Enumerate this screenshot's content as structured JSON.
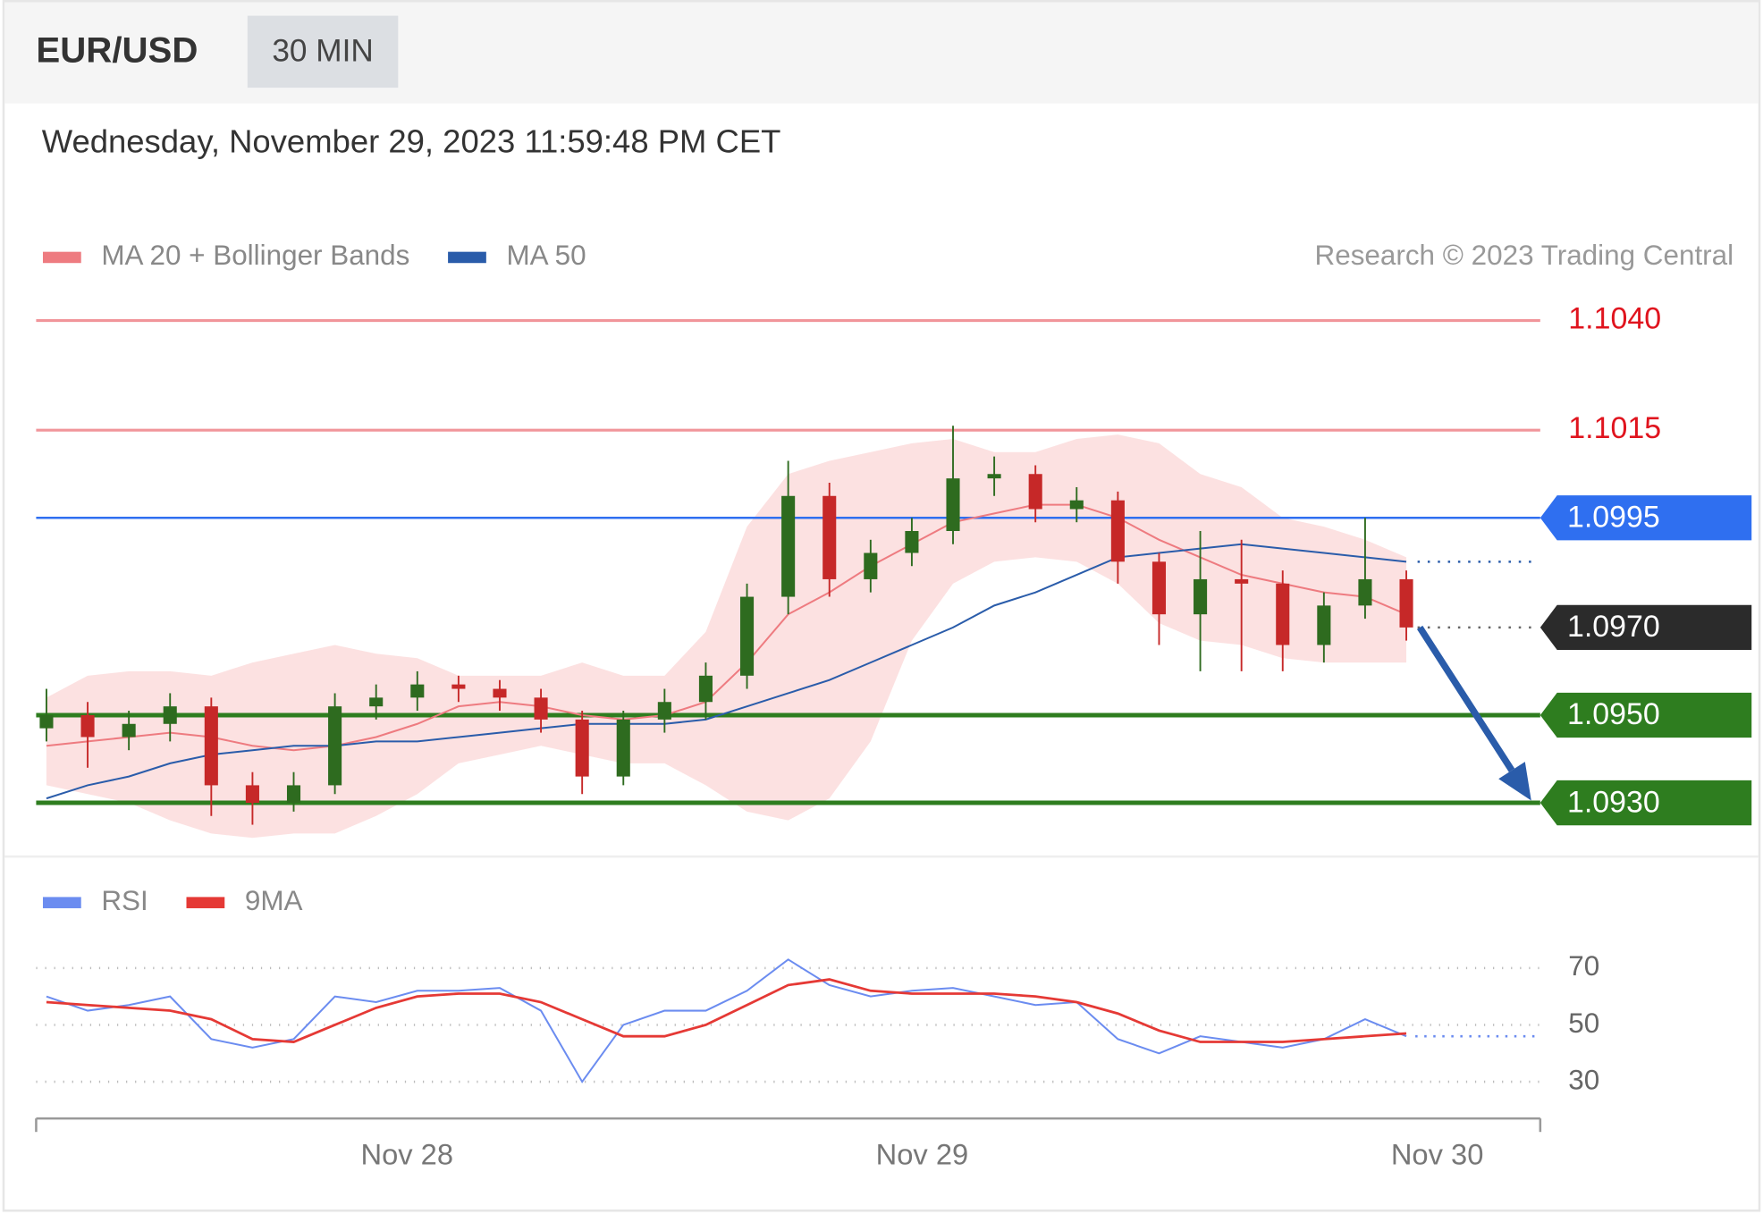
{
  "header": {
    "symbol": "EUR/USD",
    "interval": "30 MIN",
    "timestamp": "Wednesday, November 29, 2023 11:59:48 PM CET",
    "credit": "Research © 2023 Trading Central"
  },
  "chart_data": [
    {
      "type": "candlestick",
      "x": [
        27.3,
        27.38,
        27.46,
        27.54,
        27.62,
        27.7,
        27.78,
        27.86,
        27.94,
        28.02,
        28.1,
        28.18,
        28.26,
        28.34,
        28.42,
        28.5,
        28.58,
        28.66,
        28.74,
        28.82,
        28.9,
        28.98,
        29.06,
        29.14,
        29.22,
        29.3,
        29.38,
        29.46,
        29.54,
        29.62,
        29.7,
        29.78,
        29.86,
        29.94
      ],
      "open": [
        1.0947,
        1.095,
        1.0945,
        1.0948,
        1.0952,
        1.0934,
        1.093,
        1.0934,
        1.0952,
        1.0954,
        1.0957,
        1.0956,
        1.0954,
        1.0949,
        1.0936,
        1.0949,
        1.0953,
        1.0959,
        1.0977,
        1.1,
        1.0981,
        1.0987,
        1.0992,
        1.1004,
        1.1005,
        1.0997,
        1.0999,
        1.0985,
        1.0973,
        1.0981,
        1.098,
        1.0966,
        1.0975,
        1.0981
      ],
      "high": [
        1.0956,
        1.0953,
        1.0951,
        1.0955,
        1.0954,
        1.0937,
        1.0937,
        1.0955,
        1.0957,
        1.096,
        1.0959,
        1.0958,
        1.0956,
        1.0951,
        1.0951,
        1.0956,
        1.0962,
        1.098,
        1.1008,
        1.1003,
        1.099,
        1.0995,
        1.1016,
        1.1009,
        1.1007,
        1.1002,
        1.1001,
        1.0987,
        1.0992,
        1.099,
        1.0983,
        1.0978,
        1.0995,
        1.0983
      ],
      "low": [
        1.0944,
        1.0938,
        1.0942,
        1.0944,
        1.0927,
        1.0925,
        1.0928,
        1.0932,
        1.0949,
        1.0951,
        1.0953,
        1.0951,
        1.0946,
        1.0932,
        1.0934,
        1.0946,
        1.0949,
        1.0956,
        1.0973,
        1.0977,
        1.0978,
        1.0984,
        1.0989,
        1.1,
        1.0994,
        1.0994,
        1.098,
        1.0966,
        1.096,
        1.096,
        1.096,
        1.0962,
        1.0972,
        1.0967
      ],
      "close": [
        1.095,
        1.0945,
        1.0948,
        1.0952,
        1.0934,
        1.093,
        1.0934,
        1.0952,
        1.0954,
        1.0957,
        1.0956,
        1.0954,
        1.0949,
        1.0936,
        1.0949,
        1.0953,
        1.0959,
        1.0977,
        1.1,
        1.0981,
        1.0987,
        1.0992,
        1.1004,
        1.1005,
        1.0997,
        1.0999,
        1.0985,
        1.0973,
        1.0981,
        1.098,
        1.0966,
        1.0975,
        1.0981,
        1.097
      ],
      "up_color": "#2e6b1f",
      "down_color": "#c62828",
      "series": [
        {
          "name": "MA 20 + Bollinger Bands",
          "color": "#ee7b80",
          "band_color": "#fbdcdc",
          "values": [
            1.0943,
            1.0944,
            1.0945,
            1.0946,
            1.0945,
            1.0943,
            1.0942,
            1.0943,
            1.0945,
            1.0948,
            1.0952,
            1.0953,
            1.0952,
            1.095,
            1.0949,
            1.095,
            1.0953,
            1.0962,
            1.0973,
            1.0978,
            1.0984,
            1.0989,
            1.0994,
            1.0996,
            1.0998,
            1.0998,
            1.0995,
            1.099,
            1.0986,
            1.0982,
            1.098,
            1.0978,
            1.0977,
            1.0973
          ],
          "upper": [
            1.0954,
            1.0959,
            1.096,
            1.096,
            1.0959,
            1.0962,
            1.0964,
            1.0966,
            1.0964,
            1.0963,
            1.0959,
            1.0959,
            1.0959,
            1.0962,
            1.0959,
            1.0959,
            1.0969,
            1.0993,
            1.1005,
            1.1008,
            1.101,
            1.1012,
            1.1013,
            1.101,
            1.101,
            1.1013,
            1.1014,
            1.1012,
            1.1005,
            1.1002,
            1.0995,
            1.0993,
            1.099,
            1.0986
          ],
          "lower": [
            1.0934,
            1.0932,
            1.093,
            1.0926,
            1.0923,
            1.0922,
            1.0923,
            1.0923,
            1.0927,
            1.0932,
            1.0939,
            1.0941,
            1.0943,
            1.0941,
            1.0939,
            1.0939,
            1.0934,
            1.0928,
            1.0926,
            1.0931,
            1.0944,
            1.0967,
            1.098,
            1.0985,
            1.0986,
            1.0985,
            1.098,
            1.0971,
            1.0967,
            1.0966,
            1.0963,
            1.0962,
            1.0962,
            1.0962
          ]
        },
        {
          "name": "MA 50",
          "color": "#2a5caa",
          "values": [
            1.0931,
            1.0934,
            1.0936,
            1.0939,
            1.0941,
            1.0942,
            1.0943,
            1.0943,
            1.0944,
            1.0944,
            1.0945,
            1.0946,
            1.0947,
            1.0948,
            1.0948,
            1.0948,
            1.0949,
            1.0952,
            1.0955,
            1.0958,
            1.0962,
            1.0966,
            1.097,
            1.0975,
            1.0978,
            1.0982,
            1.0986,
            1.0987,
            1.0988,
            1.0989,
            1.0988,
            1.0987,
            1.0986,
            1.0985
          ]
        }
      ],
      "levels": [
        {
          "value": 1.104,
          "label": "1.1040",
          "color": "#e0141e",
          "style": "plain"
        },
        {
          "value": 1.1015,
          "label": "1.1015",
          "color": "#e0141e",
          "style": "plain"
        },
        {
          "value": 1.0995,
          "label": "1.0995",
          "color": "#2f6ff0",
          "style": "badge"
        },
        {
          "value": 1.097,
          "label": "1.0970",
          "color": "#2b2b2b",
          "style": "badge-dotted"
        },
        {
          "value": 1.095,
          "label": "1.0950",
          "color": "#2e7d1f",
          "style": "badge"
        },
        {
          "value": 1.093,
          "label": "1.0930",
          "color": "#2e7d1f",
          "style": "badge"
        }
      ],
      "xlim": [
        27.28,
        30.2
      ],
      "ylim": [
        1.0918,
        1.1048
      ]
    },
    {
      "type": "line",
      "x": [
        27.3,
        27.38,
        27.46,
        27.54,
        27.62,
        27.7,
        27.78,
        27.86,
        27.94,
        28.02,
        28.1,
        28.18,
        28.26,
        28.34,
        28.42,
        28.5,
        28.58,
        28.66,
        28.74,
        28.82,
        28.9,
        28.98,
        29.06,
        29.14,
        29.22,
        29.3,
        29.38,
        29.46,
        29.54,
        29.62,
        29.7,
        29.78,
        29.86,
        29.94
      ],
      "series": [
        {
          "name": "RSI",
          "color": "#6b8cf0",
          "values": [
            60,
            55,
            57,
            60,
            45,
            42,
            45,
            60,
            58,
            62,
            62,
            63,
            55,
            30,
            50,
            55,
            55,
            62,
            73,
            64,
            60,
            62,
            63,
            60,
            57,
            58,
            45,
            40,
            46,
            44,
            42,
            45,
            52,
            46
          ]
        },
        {
          "name": "9MA",
          "color": "#e53935",
          "values": [
            58,
            57,
            56,
            55,
            52,
            45,
            44,
            50,
            56,
            60,
            61,
            61,
            58,
            52,
            46,
            46,
            50,
            57,
            64,
            66,
            62,
            61,
            61,
            61,
            60,
            58,
            54,
            48,
            44,
            44,
            44,
            45,
            46,
            47
          ]
        }
      ],
      "xlim": [
        27.28,
        30.2
      ],
      "ylim": [
        25,
        76
      ],
      "yticks": [
        30,
        50,
        70
      ],
      "grid": true,
      "xticks": [
        {
          "value": 28,
          "label": "Nov 28"
        },
        {
          "value": 29,
          "label": "Nov 29"
        },
        {
          "value": 30,
          "label": "Nov 30"
        }
      ]
    }
  ]
}
